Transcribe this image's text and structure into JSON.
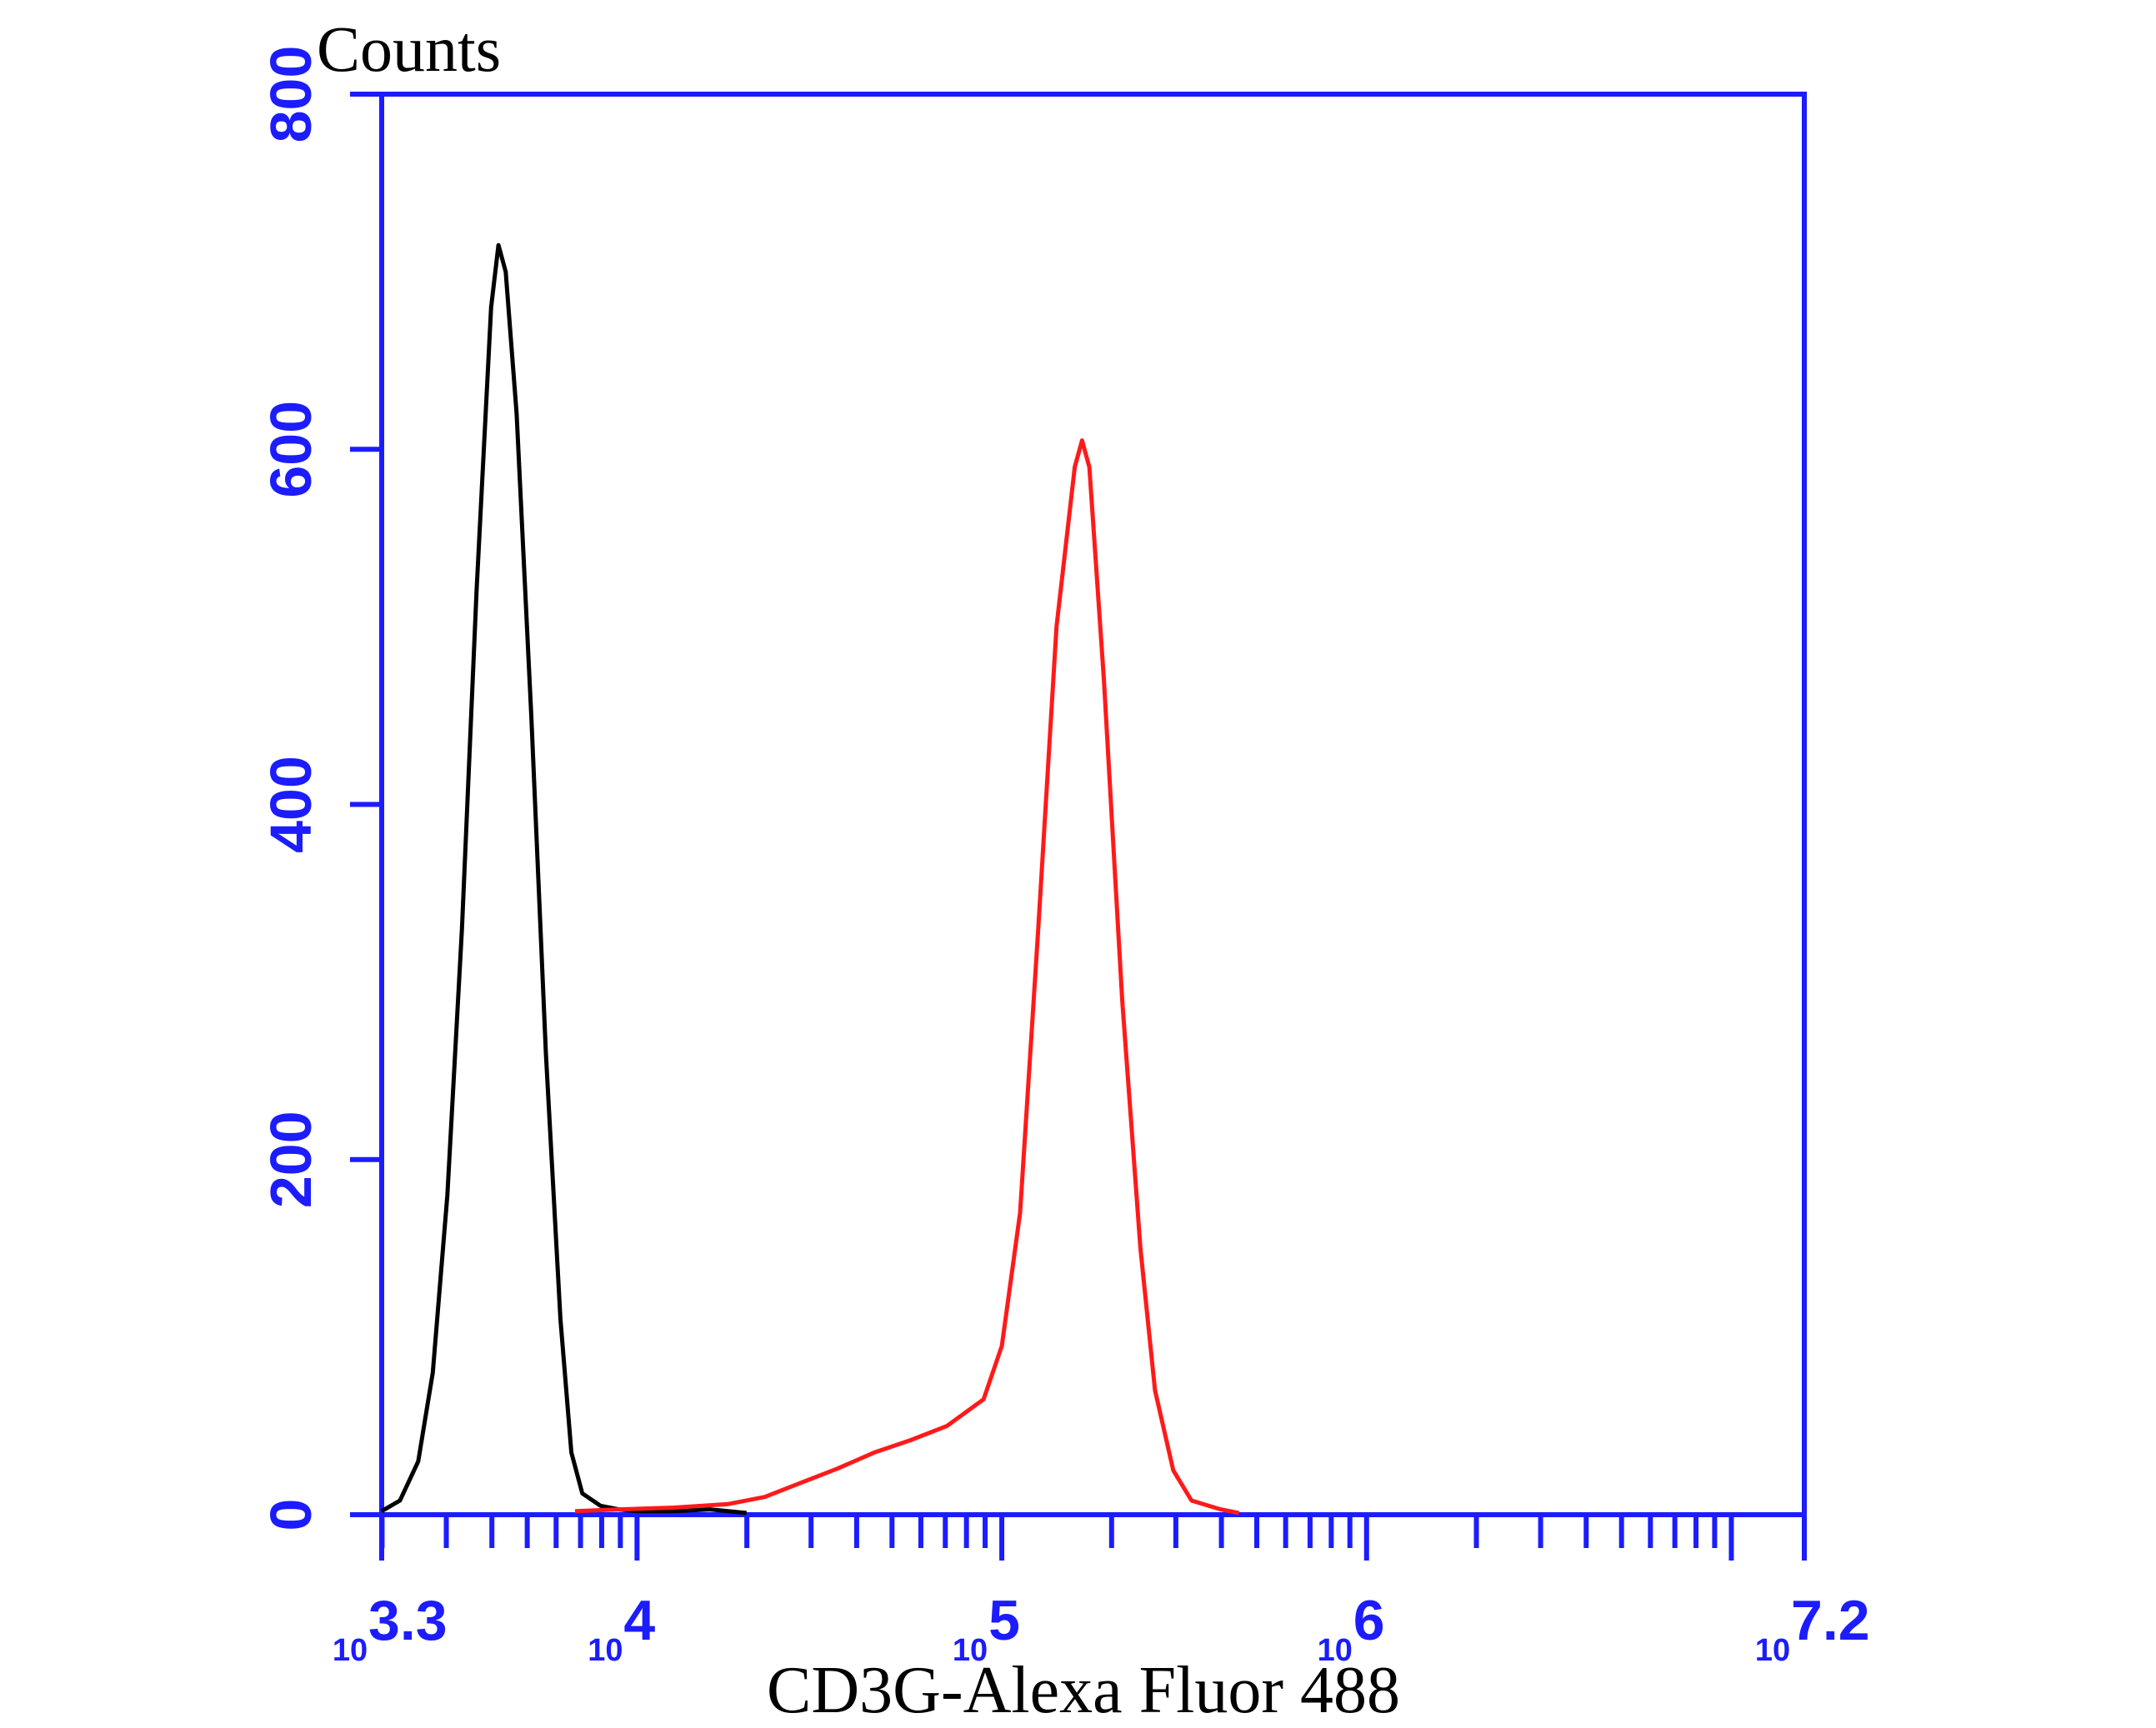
{
  "chart_data": {
    "type": "line",
    "ylabel": "Counts",
    "xlabel": "CD3G-Alexa Fluor 488",
    "x_scale": "log10",
    "xlim": [
      3.3,
      7.2
    ],
    "ylim": [
      0,
      800
    ],
    "y_ticks": [
      0,
      200,
      400,
      600,
      800
    ],
    "x_tick_labels": [
      {
        "base": "10",
        "exp": "3.3",
        "pos": 3.3
      },
      {
        "base": "10",
        "exp": "4",
        "pos": 4
      },
      {
        "base": "10",
        "exp": "5",
        "pos": 5
      },
      {
        "base": "10",
        "exp": "6",
        "pos": 6
      },
      {
        "base": "10",
        "exp": "7.2",
        "pos": 7.2
      }
    ],
    "axis_color": "#1c1cff",
    "series": [
      {
        "color": "#000000",
        "points": [
          [
            3.3,
            2
          ],
          [
            3.35,
            8
          ],
          [
            3.4,
            30
          ],
          [
            3.44,
            80
          ],
          [
            3.48,
            180
          ],
          [
            3.52,
            330
          ],
          [
            3.56,
            520
          ],
          [
            3.6,
            680
          ],
          [
            3.62,
            715
          ],
          [
            3.64,
            700
          ],
          [
            3.67,
            620
          ],
          [
            3.71,
            450
          ],
          [
            3.75,
            260
          ],
          [
            3.79,
            110
          ],
          [
            3.82,
            35
          ],
          [
            3.85,
            12
          ],
          [
            3.9,
            5
          ],
          [
            3.95,
            3
          ],
          [
            4.0,
            2
          ],
          [
            4.1,
            2
          ],
          [
            4.2,
            3
          ],
          [
            4.3,
            1
          ]
        ]
      },
      {
        "color": "#ff1a1a",
        "points": [
          [
            3.83,
            2
          ],
          [
            3.95,
            3
          ],
          [
            4.1,
            4
          ],
          [
            4.25,
            6
          ],
          [
            4.35,
            10
          ],
          [
            4.45,
            18
          ],
          [
            4.55,
            26
          ],
          [
            4.65,
            35
          ],
          [
            4.75,
            42
          ],
          [
            4.85,
            50
          ],
          [
            4.95,
            65
          ],
          [
            5.0,
            95
          ],
          [
            5.05,
            170
          ],
          [
            5.1,
            330
          ],
          [
            5.15,
            500
          ],
          [
            5.2,
            590
          ],
          [
            5.22,
            605
          ],
          [
            5.24,
            590
          ],
          [
            5.28,
            470
          ],
          [
            5.33,
            290
          ],
          [
            5.38,
            150
          ],
          [
            5.42,
            70
          ],
          [
            5.47,
            25
          ],
          [
            5.52,
            8
          ],
          [
            5.6,
            3
          ],
          [
            5.65,
            1
          ]
        ]
      }
    ]
  }
}
